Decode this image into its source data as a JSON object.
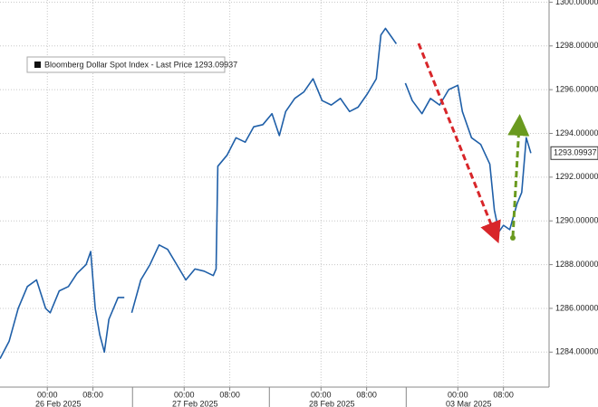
{
  "chart_data": {
    "type": "line",
    "series": [
      {
        "name": "Bloomberg Dollar Spot Index - Last Price 1293.09937",
        "color": "#1f5fa8",
        "x": [
          -8.3,
          -6.7,
          -5.1,
          -3.5,
          -1.9,
          -0.3,
          0.5,
          2.1,
          3.7,
          5.2,
          6.8,
          7.6,
          8.4,
          9.2,
          10.0,
          10.8,
          12.4,
          13.5,
          14.2,
          14.8,
          16.4,
          18.0,
          19.6,
          21.1,
          22.7,
          24.3,
          25.9,
          27.5,
          29.1,
          29.6,
          29.9,
          31.5,
          33.1,
          34.7,
          36.2,
          37.8,
          39.4,
          40.7,
          41.8,
          43.4,
          45.0,
          46.6,
          48.2,
          49.8,
          51.4,
          53.0,
          54.5,
          56.1,
          57.7,
          58.5,
          59.3,
          60.4,
          61.2,
          62.0,
          62.8,
          64.0,
          65.7,
          67.2,
          68.8,
          70.4,
          72.0,
          72.8,
          74.4,
          76.0,
          77.6,
          78.4,
          79.2,
          80.0,
          81.1,
          82.4,
          83.2,
          84.0,
          84.8
        ],
        "values": [
          1283.7,
          1284.5,
          1286.0,
          1287.0,
          1287.3,
          1286.0,
          1285.8,
          1286.8,
          1287.0,
          1287.6,
          1288.0,
          1288.6,
          1286.0,
          1284.8,
          1284.0,
          1285.5,
          1286.5,
          1286.5,
          null,
          1285.8,
          1287.3,
          1288.0,
          1288.9,
          1288.7,
          1288.0,
          1287.3,
          1287.8,
          1287.7,
          1287.5,
          1287.8,
          1292.5,
          1293.0,
          1293.8,
          1293.6,
          1294.3,
          1294.4,
          1294.9,
          1293.9,
          1295.0,
          1295.6,
          1295.9,
          1296.5,
          1295.5,
          1295.3,
          1295.6,
          1295.0,
          1295.2,
          1295.8,
          1296.5,
          1298.5,
          1298.8,
          1298.4,
          1298.1,
          null,
          1296.3,
          1295.5,
          1294.9,
          1295.6,
          1295.3,
          1296.0,
          1296.2,
          1295.0,
          1293.8,
          1293.5,
          1292.6,
          1290.5,
          1289.5,
          1289.8,
          1289.6,
          1290.8,
          1291.3,
          1293.8,
          1293.1
        ]
      }
    ],
    "last_price_label": "1293.09937",
    "xlim": [
      -8.3,
      88.0
    ],
    "ylim": [
      1282.4,
      1300.1
    ],
    "xticks": [
      {
        "value": 0,
        "label": "00:00"
      },
      {
        "value": 8,
        "label": "08:00"
      },
      {
        "value": 24,
        "label": "00:00"
      },
      {
        "value": 32,
        "label": "08:00"
      },
      {
        "value": 48,
        "label": "00:00"
      },
      {
        "value": 56,
        "label": "08:00"
      },
      {
        "value": 72,
        "label": "00:00"
      },
      {
        "value": 80,
        "label": "08:00"
      }
    ],
    "date_labels": [
      {
        "value": 0,
        "label": "26 Feb 2025"
      },
      {
        "value": 24,
        "label": "27 Feb 2025"
      },
      {
        "value": 48,
        "label": "28 Feb 2025"
      },
      {
        "value": 72,
        "label": "03 Mar 2025"
      }
    ],
    "yticks": [
      {
        "value": 1284,
        "label": "1284.00000"
      },
      {
        "value": 1286,
        "label": "1286.00000"
      },
      {
        "value": 1288,
        "label": "1288.00000"
      },
      {
        "value": 1290,
        "label": "1290.00000"
      },
      {
        "value": 1292,
        "label": "1292.00000"
      },
      {
        "value": 1294,
        "label": "1294.00000"
      },
      {
        "value": 1296,
        "label": "1296.00000"
      },
      {
        "value": 1298,
        "label": "1298.00000"
      },
      {
        "value": 1300,
        "label": "1300.00000"
      }
    ],
    "grid": true
  }
}
